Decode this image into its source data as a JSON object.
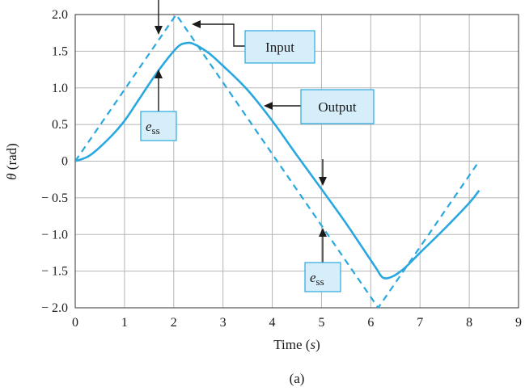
{
  "chart_data": {
    "type": "line",
    "title": "",
    "xlabel_base": "Time (",
    "xlabel_var": "s",
    "xlabel_close": ")",
    "ylabel_var": "θ",
    "ylabel_unit": " (rad)",
    "caption": "(a)",
    "xlim": [
      0,
      9
    ],
    "ylim": [
      -2.0,
      2.0
    ],
    "x_ticks": [
      0,
      1,
      2,
      3,
      4,
      5,
      6,
      7,
      8,
      9
    ],
    "x_tick_labels": [
      "0",
      "1",
      "2",
      "3",
      "4",
      "5",
      "6",
      "7",
      "8",
      "9"
    ],
    "y_ticks": [
      2.0,
      1.5,
      1.0,
      0.5,
      0,
      -0.5,
      -1.0,
      -1.5,
      -2.0
    ],
    "y_tick_labels": [
      "2.0",
      "1.5",
      "1.0",
      "0.5",
      "0",
      "− 0.5",
      "− 1.0",
      "− 1.5",
      "− 2.0"
    ],
    "grid": true,
    "series": [
      {
        "name": "Input",
        "style": "dashed",
        "color": "#29a8e0",
        "x": [
          0,
          2.05,
          6.15,
          8.2
        ],
        "y": [
          0,
          2.0,
          -2.0,
          0
        ]
      },
      {
        "name": "Output",
        "style": "solid",
        "color": "#29a8e0",
        "x": [
          0,
          0.3,
          0.7,
          1.0,
          1.3,
          1.6,
          1.9,
          2.1,
          2.25,
          2.4,
          2.7,
          3.0,
          3.5,
          4.0,
          4.5,
          5.0,
          5.5,
          5.9,
          6.1,
          6.25,
          6.45,
          6.7,
          7.0,
          7.5,
          8.0,
          8.2
        ],
        "y": [
          0,
          0.08,
          0.32,
          0.55,
          0.85,
          1.15,
          1.42,
          1.57,
          1.61,
          1.6,
          1.48,
          1.3,
          0.97,
          0.55,
          0.08,
          -0.38,
          -0.85,
          -1.25,
          -1.45,
          -1.59,
          -1.57,
          -1.45,
          -1.25,
          -0.92,
          -0.57,
          -0.4
        ]
      }
    ],
    "annotations": {
      "input_label": "Input",
      "output_label": "Output",
      "ess_main": "e",
      "ess_sub": "ss"
    }
  }
}
